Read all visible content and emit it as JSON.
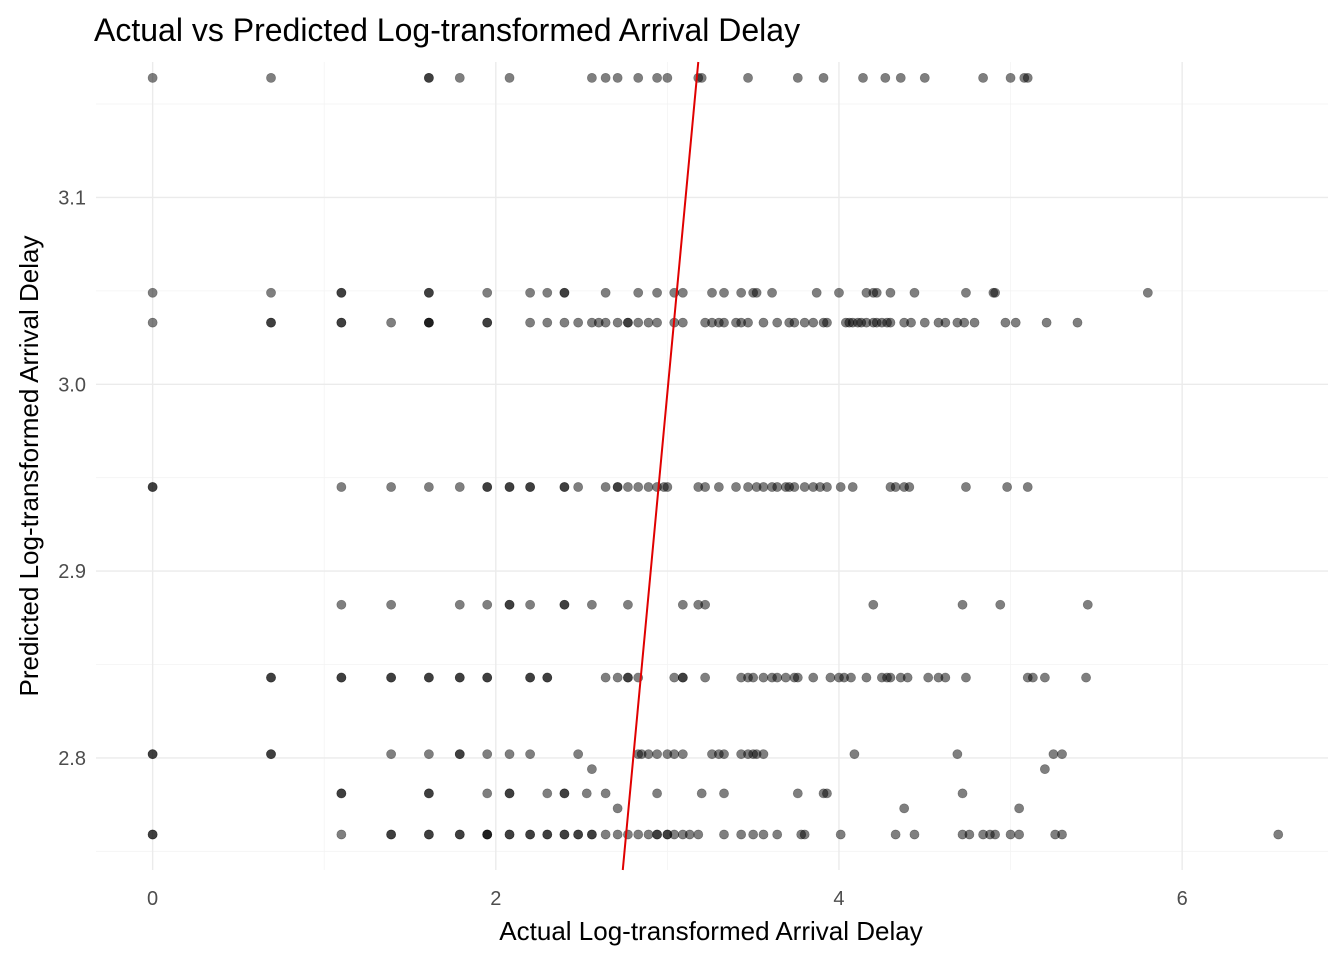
{
  "chart_data": {
    "type": "scatter",
    "title": "Actual vs Predicted Log-transformed Arrival Delay",
    "xlabel": "Actual Log-transformed Arrival Delay",
    "ylabel": "Predicted Log-transformed Arrival Delay",
    "xlim": [
      -0.33,
      6.85
    ],
    "ylim": [
      2.74,
      3.1725
    ],
    "x_ticks": [
      0,
      2,
      4,
      6
    ],
    "x_tick_labels": [
      "0",
      "2",
      "4",
      "6"
    ],
    "y_ticks": [
      2.8,
      2.9,
      3.0,
      3.1
    ],
    "y_tick_labels": [
      "2.8",
      "2.9",
      "3.0",
      "3.1"
    ],
    "grid": true,
    "point_color": "#000000",
    "point_opacity": 0.5,
    "line_color": "#e00000",
    "fit_line": {
      "x": [
        2.74,
        3.18
      ],
      "y": [
        2.74,
        3.1725
      ]
    },
    "series": [
      {
        "y": 3.164,
        "x": [
          0,
          0.69,
          1.61,
          1.61,
          1.79,
          2.08,
          2.56,
          2.64,
          2.71,
          2.83,
          2.94,
          3.0,
          3.18,
          3.2,
          3.47,
          3.76,
          3.91,
          4.14,
          4.27,
          4.36,
          4.5,
          4.84,
          5.0,
          5.08,
          5.1
        ]
      },
      {
        "y": 3.049,
        "x": [
          0,
          0.69,
          1.1,
          1.1,
          1.61,
          1.61,
          1.95,
          2.2,
          2.3,
          2.4,
          2.4,
          2.64,
          2.83,
          2.94,
          3.04,
          3.09,
          3.26,
          3.33,
          3.43,
          3.5,
          3.52,
          3.61,
          3.87,
          4.0,
          4.16,
          4.2,
          4.22,
          4.3,
          4.44,
          4.74,
          4.9,
          4.91,
          5.8
        ]
      },
      {
        "y": 3.033,
        "x": [
          0,
          0.69,
          0.69,
          1.1,
          1.1,
          1.39,
          1.61,
          1.61,
          1.61,
          1.95,
          1.95,
          2.2,
          2.3,
          2.4,
          2.48,
          2.56,
          2.6,
          2.64,
          2.71,
          2.77,
          2.77,
          2.83,
          2.89,
          2.94,
          3.04,
          3.09,
          3.22,
          3.26,
          3.3,
          3.33,
          3.4,
          3.43,
          3.47,
          3.56,
          3.64,
          3.71,
          3.74,
          3.8,
          3.85,
          3.91,
          3.93,
          4.04,
          4.06,
          4.08,
          4.11,
          4.13,
          4.16,
          4.2,
          4.22,
          4.25,
          4.28,
          4.3,
          4.38,
          4.42,
          4.5,
          4.58,
          4.62,
          4.69,
          4.73,
          4.79,
          4.97,
          5.03,
          5.21,
          5.39
        ]
      },
      {
        "y": 2.945,
        "x": [
          0,
          0,
          1.1,
          1.39,
          1.61,
          1.79,
          1.95,
          1.95,
          2.08,
          2.08,
          2.2,
          2.2,
          2.4,
          2.4,
          2.48,
          2.64,
          2.71,
          2.71,
          2.77,
          2.83,
          2.89,
          2.94,
          2.98,
          3.0,
          3.18,
          3.22,
          3.3,
          3.4,
          3.47,
          3.52,
          3.56,
          3.61,
          3.64,
          3.69,
          3.71,
          3.74,
          3.8,
          3.85,
          3.89,
          3.93,
          4.01,
          4.08,
          4.3,
          4.33,
          4.38,
          4.41,
          4.74,
          4.98,
          5.1
        ]
      },
      {
        "y": 2.882,
        "x": [
          1.1,
          1.39,
          1.79,
          1.95,
          2.08,
          2.08,
          2.2,
          2.4,
          2.4,
          2.56,
          2.77,
          3.09,
          3.18,
          3.22,
          4.2,
          4.72,
          4.94,
          5.45
        ]
      },
      {
        "y": 2.843,
        "x": [
          0.69,
          0.69,
          1.1,
          1.1,
          1.39,
          1.39,
          1.61,
          1.61,
          1.79,
          1.79,
          1.95,
          1.95,
          2.2,
          2.2,
          2.3,
          2.3,
          2.64,
          2.71,
          2.77,
          2.77,
          2.83,
          3.04,
          3.09,
          3.09,
          3.22,
          3.43,
          3.47,
          3.5,
          3.56,
          3.61,
          3.64,
          3.69,
          3.74,
          3.76,
          3.85,
          3.95,
          4.0,
          4.03,
          4.07,
          4.16,
          4.25,
          4.28,
          4.3,
          4.36,
          4.4,
          4.52,
          4.58,
          4.62,
          4.74,
          5.1,
          5.13,
          5.2,
          5.44
        ]
      },
      {
        "y": 2.802,
        "x": [
          0,
          0,
          0.69,
          0.69,
          1.39,
          1.61,
          1.79,
          1.79,
          1.95,
          2.08,
          2.2,
          2.48,
          2.83,
          2.85,
          2.89,
          2.94,
          3.0,
          3.04,
          3.09,
          3.26,
          3.3,
          3.33,
          3.43,
          3.47,
          3.5,
          3.52,
          3.56,
          4.09,
          4.69,
          5.25,
          5.3
        ]
      },
      {
        "y": 2.794,
        "x": [
          2.56,
          5.2
        ]
      },
      {
        "y": 2.781,
        "x": [
          1.1,
          1.1,
          1.61,
          1.61,
          1.95,
          2.08,
          2.08,
          2.3,
          2.4,
          2.4,
          2.53,
          2.64,
          2.94,
          3.2,
          3.33,
          3.76,
          3.91,
          3.93,
          4.72
        ]
      },
      {
        "y": 2.773,
        "x": [
          2.71,
          4.38,
          5.05
        ]
      },
      {
        "y": 2.759,
        "x": [
          0,
          0,
          1.1,
          1.39,
          1.39,
          1.61,
          1.61,
          1.79,
          1.79,
          1.95,
          1.95,
          1.95,
          2.08,
          2.08,
          2.2,
          2.2,
          2.3,
          2.3,
          2.4,
          2.4,
          2.48,
          2.48,
          2.56,
          2.56,
          2.64,
          2.71,
          2.77,
          2.83,
          2.89,
          2.94,
          2.94,
          3.0,
          3.0,
          3.04,
          3.09,
          3.13,
          3.18,
          3.33,
          3.43,
          3.5,
          3.56,
          3.64,
          3.78,
          3.8,
          4.01,
          4.33,
          4.44,
          4.72,
          4.76,
          4.84,
          4.88,
          4.91,
          5.0,
          5.05,
          5.26,
          5.3,
          6.56
        ]
      }
    ]
  }
}
